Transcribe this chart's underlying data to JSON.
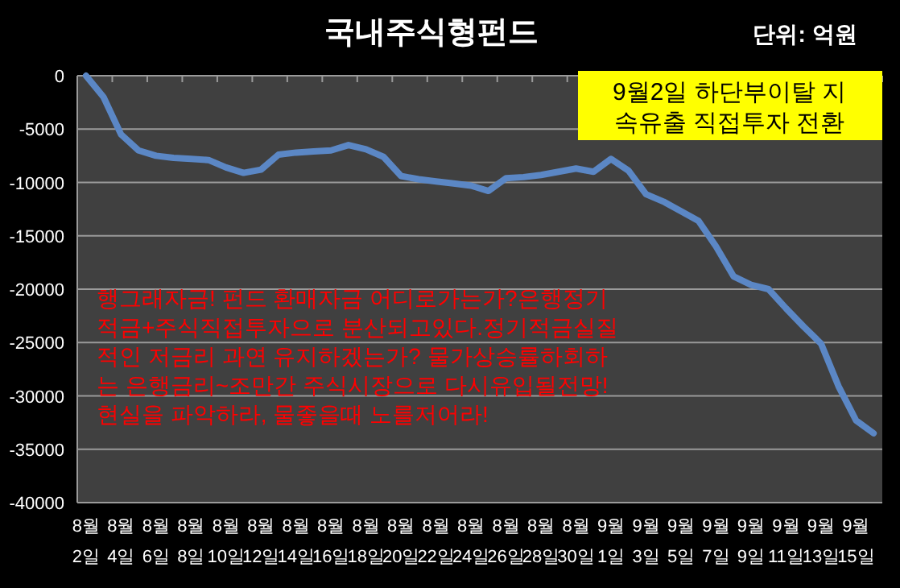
{
  "chart_data": {
    "type": "line",
    "title": "국내주식형펀드",
    "annotations": [
      "단위: 억원",
      "9월2일 하단부이탈 지\n속유출 직접투자 전환",
      "행그래자금! 펀드 환매자금 어디로가는가?은행정기\n적금+주식직접투자으로 분산되고있다.정기적금실질\n적인 저금리 과연 유지하겠는가? 물가상승률하회하\n는 은행금리~조만간 주식시장으로 다시유입될전망!\n현실을 파악하라, 물좋을때 노를저어라!"
    ],
    "categories": [
      "8월 2일",
      null,
      "8월 4일",
      null,
      "8월 6일",
      null,
      "8월 8일",
      null,
      "8월 10일",
      null,
      "8월 12일",
      null,
      "8월 14일",
      null,
      "8월 16일",
      null,
      "8월 18일",
      null,
      "8월 20일",
      null,
      "8월 22일",
      null,
      "8월 24일",
      null,
      "8월 26일",
      null,
      "8월 28일",
      null,
      "8월 30일",
      null,
      "9월 1일",
      null,
      "9월 3일",
      null,
      "9월 5일",
      null,
      "9월 7일",
      null,
      "9월 9일",
      null,
      "9월 11일",
      null,
      "9월 13일",
      null,
      "9월 15일",
      null
    ],
    "series": [
      {
        "color": "#5b87c5",
        "values": [
          0,
          -2000,
          -5500,
          -7000,
          -7500,
          -7700,
          -7800,
          -7900,
          -8600,
          -9100,
          -8800,
          -7400,
          -7200,
          -7100,
          -7000,
          -6500,
          -6900,
          -7600,
          -9400,
          -9700,
          -9900,
          -10100,
          -10300,
          -10800,
          -9600,
          -9500,
          -9300,
          -9000,
          -8700,
          -9000,
          -7800,
          -8900,
          -11100,
          -11800,
          -12700,
          -13600,
          -16000,
          -18800,
          -19600,
          -20000,
          -21800,
          -23500,
          -25100,
          -29100,
          -32300,
          -33500
        ]
      }
    ],
    "ylim": [
      -40000,
      0
    ],
    "yticks": [
      0,
      -5000,
      -10000,
      -15000,
      -20000,
      -25000,
      -30000,
      -35000,
      -40000
    ],
    "grid": "y"
  }
}
